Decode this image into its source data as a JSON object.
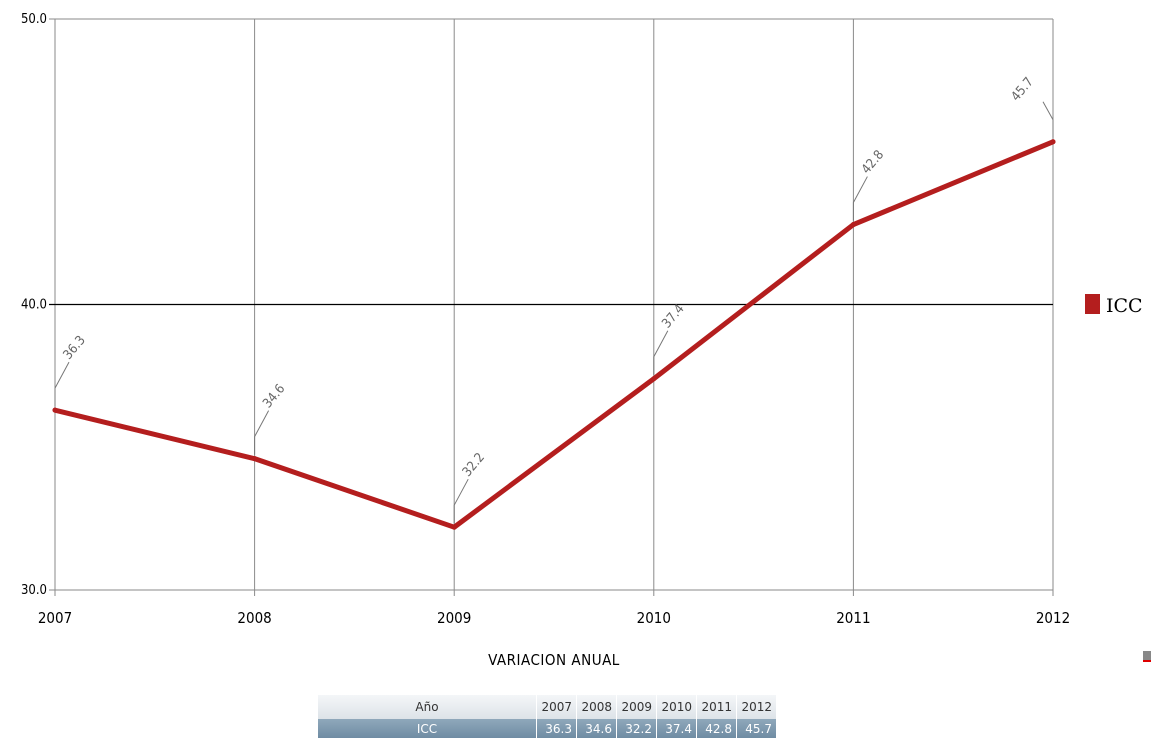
{
  "chart_data": {
    "type": "line",
    "xlabel": "VARIACION ANUAL",
    "ylabel": "",
    "x": [
      "2007",
      "2008",
      "2009",
      "2010",
      "2011",
      "2012"
    ],
    "ylim": [
      30.0,
      50.0
    ],
    "yticks": [
      "30.0",
      "40.0",
      "50.0"
    ],
    "series": [
      {
        "name": "ICC",
        "color": "#b41e1e",
        "values": [
          36.3,
          34.6,
          32.2,
          37.4,
          42.8,
          45.7
        ],
        "labels": [
          "36.3",
          "34.6",
          "32.2",
          "37.4",
          "42.8",
          "45.7"
        ]
      }
    ],
    "legend": {
      "position": "right",
      "label": "ICC"
    },
    "grid": {
      "vertical": true,
      "horizontal_at": [
        "40.0"
      ]
    }
  },
  "table": {
    "header_label": "Año",
    "years": [
      "2007",
      "2008",
      "2009",
      "2010",
      "2011",
      "2012"
    ],
    "row_label": "ICC",
    "values": [
      "36.3",
      "34.6",
      "32.2",
      "37.4",
      "42.8",
      "45.7"
    ]
  },
  "icons": {
    "corner": "chart-menu-icon"
  }
}
